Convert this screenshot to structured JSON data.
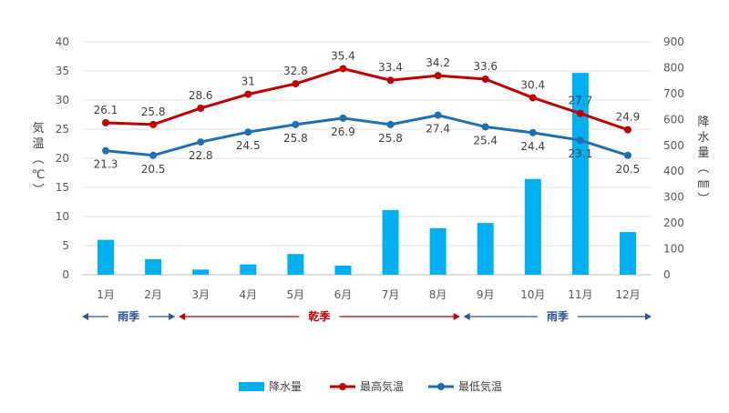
{
  "chart_data": {
    "type": "bar+line",
    "categories": [
      "1月",
      "2月",
      "3月",
      "4月",
      "5月",
      "6月",
      "7月",
      "8月",
      "9月",
      "10月",
      "11月",
      "12月"
    ],
    "series": [
      {
        "name": "降水量",
        "type": "bar",
        "axis": "right",
        "color": "#00b0f0",
        "values": [
          135,
          60,
          20,
          40,
          80,
          35,
          250,
          180,
          200,
          370,
          780,
          165
        ]
      },
      {
        "name": "最高気温",
        "type": "line",
        "axis": "left",
        "color": "#c00000",
        "values": [
          26.1,
          25.8,
          28.6,
          31,
          32.8,
          35.4,
          33.4,
          34.2,
          33.6,
          30.4,
          27.7,
          24.9
        ],
        "labels": [
          "26.1",
          "25.8",
          "28.6",
          "31",
          "32.8",
          "35.4",
          "33.4",
          "34.2",
          "33.6",
          "30.4",
          "27.7",
          "24.9"
        ]
      },
      {
        "name": "最低気温",
        "type": "line",
        "axis": "left",
        "color": "#1f6fb5",
        "values": [
          21.3,
          20.5,
          22.8,
          24.5,
          25.8,
          26.9,
          25.8,
          27.4,
          25.4,
          24.4,
          23.1,
          20.5
        ],
        "labels": [
          "21.3",
          "20.5",
          "22.8",
          "24.5",
          "25.8",
          "26.9",
          "25.8",
          "27.4",
          "25.4",
          "24.4",
          "23.1",
          "20.5"
        ]
      }
    ],
    "yleft": {
      "range": [
        0,
        40
      ],
      "ticks": [
        "0",
        "5",
        "10",
        "15",
        "20",
        "25",
        "30",
        "35",
        "40"
      ],
      "title_chars": [
        "気",
        "温",
        "(",
        "℃",
        ")"
      ]
    },
    "yright": {
      "range": [
        0,
        900
      ],
      "ticks": [
        "0",
        "100",
        "200",
        "300",
        "400",
        "500",
        "600",
        "700",
        "800",
        "900"
      ],
      "title_chars": [
        "降",
        "水",
        "量",
        "(",
        "㎜",
        ")"
      ]
    },
    "grid": true,
    "legend_position": "bottom-center",
    "seasons": [
      {
        "label": "雨季",
        "from_month": 1,
        "to_month": 3,
        "color": "#2e5597"
      },
      {
        "label": "乾季",
        "from_month": 3,
        "to_month": 9,
        "color": "#c00000"
      },
      {
        "label": "雨季",
        "from_month": 9,
        "to_month": 12,
        "color": "#2e5597"
      }
    ]
  }
}
